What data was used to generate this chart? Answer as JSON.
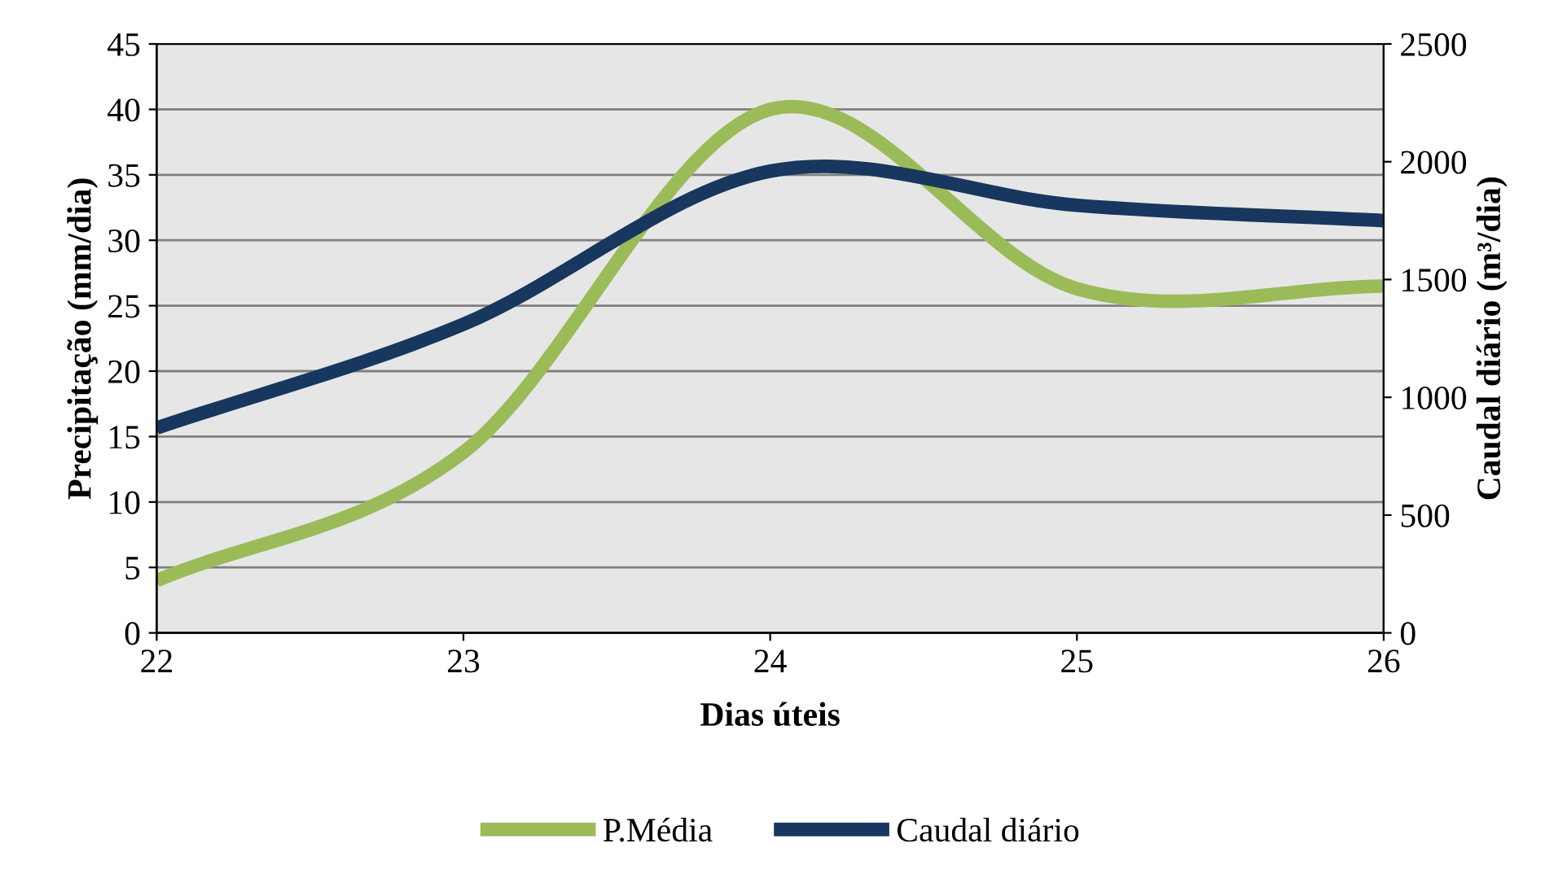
{
  "chart_data": {
    "type": "line",
    "xlabel": "Dias úteis",
    "ylabel": "Precipitação (mm/dia)",
    "y2label": "Caudal diário (m³/dia)",
    "x": [
      22,
      23,
      24,
      25,
      26
    ],
    "series": [
      {
        "name": "P.Média",
        "color": "#9bbb59",
        "values": [
          4,
          13.8,
          40,
          26.3,
          26.5
        ]
      },
      {
        "name": "Caudal diário",
        "color": "#17375e",
        "axis": "y2",
        "values": [
          870,
          1310,
          1960,
          1815,
          1750
        ]
      }
    ],
    "xlim": [
      22,
      26
    ],
    "xticks": [
      22,
      23,
      24,
      25,
      26
    ],
    "ylim": [
      0,
      45
    ],
    "yticks": [
      0,
      5,
      10,
      15,
      20,
      25,
      30,
      35,
      40,
      45
    ],
    "y2lim": [
      0,
      2500
    ],
    "y2ticks": [
      0,
      500,
      1000,
      1500,
      2000,
      2500
    ],
    "grid": "y",
    "legend": "bottom",
    "marker": "none",
    "line_style": "solid"
  }
}
